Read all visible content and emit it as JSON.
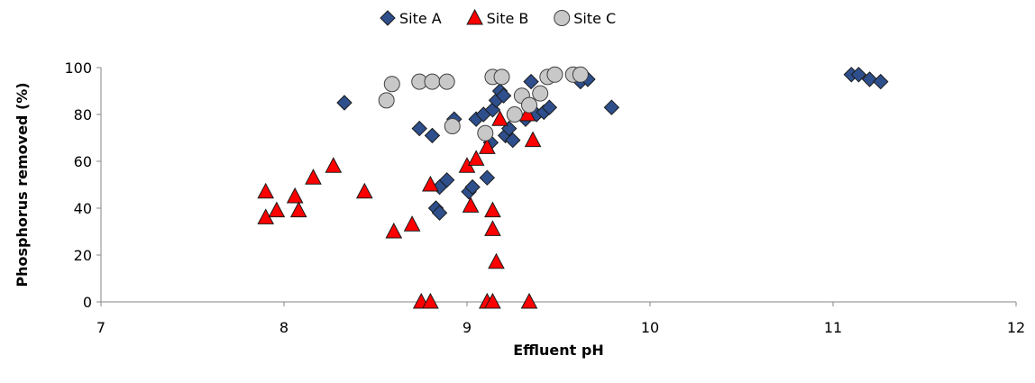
{
  "chart_data": {
    "type": "scatter",
    "xlabel": "Effluent pH",
    "ylabel": "Phosphorus removed (%)",
    "xlim": [
      7,
      12
    ],
    "ylim": [
      0,
      100
    ],
    "x_ticks": [
      7,
      8,
      9,
      10,
      11,
      12
    ],
    "y_ticks": [
      0,
      20,
      40,
      60,
      80,
      100
    ],
    "grid": false,
    "legend_position": "top-center",
    "series": [
      {
        "name": "Site A",
        "marker": "diamond",
        "color": "#2e4f8c",
        "points": [
          [
            8.33,
            85
          ],
          [
            8.74,
            74
          ],
          [
            8.81,
            71
          ],
          [
            8.83,
            40
          ],
          [
            8.85,
            38
          ],
          [
            8.85,
            49
          ],
          [
            8.89,
            52
          ],
          [
            8.93,
            78
          ],
          [
            9.01,
            47
          ],
          [
            9.03,
            49
          ],
          [
            9.05,
            78
          ],
          [
            9.09,
            80
          ],
          [
            9.11,
            53
          ],
          [
            9.13,
            68
          ],
          [
            9.14,
            82
          ],
          [
            9.16,
            86
          ],
          [
            9.18,
            90
          ],
          [
            9.2,
            88
          ],
          [
            9.21,
            71
          ],
          [
            9.23,
            74
          ],
          [
            9.25,
            69
          ],
          [
            9.26,
            80
          ],
          [
            9.32,
            78
          ],
          [
            9.35,
            94
          ],
          [
            9.38,
            80
          ],
          [
            9.42,
            81
          ],
          [
            9.45,
            83
          ],
          [
            9.62,
            94
          ],
          [
            9.66,
            95
          ],
          [
            9.79,
            83
          ],
          [
            11.1,
            97
          ],
          [
            11.14,
            97
          ],
          [
            11.2,
            95
          ],
          [
            11.26,
            94
          ]
        ]
      },
      {
        "name": "Site B",
        "marker": "triangle",
        "color": "#ff0000",
        "points": [
          [
            7.9,
            47
          ],
          [
            7.9,
            36
          ],
          [
            7.96,
            39
          ],
          [
            8.06,
            45
          ],
          [
            8.08,
            39
          ],
          [
            8.16,
            53
          ],
          [
            8.27,
            58
          ],
          [
            8.44,
            47
          ],
          [
            8.6,
            30
          ],
          [
            8.7,
            33
          ],
          [
            8.75,
            0
          ],
          [
            8.8,
            0
          ],
          [
            8.8,
            50
          ],
          [
            9.0,
            58
          ],
          [
            9.02,
            41
          ],
          [
            9.05,
            61
          ],
          [
            9.11,
            66
          ],
          [
            9.11,
            0
          ],
          [
            9.14,
            0
          ],
          [
            9.14,
            39
          ],
          [
            9.14,
            31
          ],
          [
            9.16,
            17
          ],
          [
            9.18,
            78
          ],
          [
            9.33,
            80
          ],
          [
            9.34,
            0
          ],
          [
            9.36,
            69
          ]
        ]
      },
      {
        "name": "Site C",
        "marker": "circle",
        "color": "#c8c8c8",
        "points": [
          [
            8.56,
            86
          ],
          [
            8.59,
            93
          ],
          [
            8.74,
            94
          ],
          [
            8.81,
            94
          ],
          [
            8.89,
            94
          ],
          [
            8.92,
            75
          ],
          [
            9.1,
            72
          ],
          [
            9.14,
            96
          ],
          [
            9.19,
            96
          ],
          [
            9.26,
            80
          ],
          [
            9.3,
            88
          ],
          [
            9.34,
            84
          ],
          [
            9.4,
            89
          ],
          [
            9.44,
            96
          ],
          [
            9.48,
            97
          ],
          [
            9.58,
            97
          ],
          [
            9.62,
            97
          ]
        ]
      }
    ]
  }
}
